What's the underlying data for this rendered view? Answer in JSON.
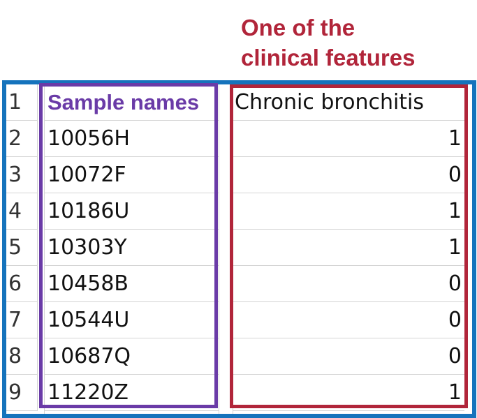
{
  "annotation": {
    "line1": "One of the",
    "line2": "clinical features",
    "color": "#b1253a"
  },
  "colors": {
    "outer_frame": "#1573bc",
    "sample_box": "#6a3ba7",
    "feature_box": "#b1253a"
  },
  "rows": [
    {
      "num": "1",
      "name": "Sample names",
      "value": "Chronic bronchitis"
    },
    {
      "num": "2",
      "name": "10056H",
      "value": "1"
    },
    {
      "num": "3",
      "name": "10072F",
      "value": "0"
    },
    {
      "num": "4",
      "name": "10186U",
      "value": "1"
    },
    {
      "num": "5",
      "name": "10303Y",
      "value": "1"
    },
    {
      "num": "6",
      "name": "10458B",
      "value": "0"
    },
    {
      "num": "7",
      "name": "10544U",
      "value": "0"
    },
    {
      "num": "8",
      "name": "10687Q",
      "value": "0"
    },
    {
      "num": "9",
      "name": "11220Z",
      "value": "1"
    }
  ]
}
